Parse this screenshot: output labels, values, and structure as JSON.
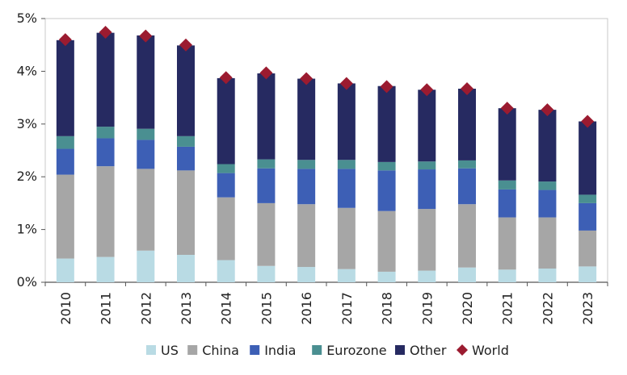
{
  "chart_data": {
    "type": "bar",
    "stacked": true,
    "categories": [
      "2010",
      "2011",
      "2012",
      "2013",
      "2014",
      "2015",
      "2016",
      "2017",
      "2018",
      "2019",
      "2020",
      "2021",
      "2022",
      "2023"
    ],
    "series": [
      {
        "name": "US",
        "color": "#b9dbe4",
        "values": [
          0.45,
          0.48,
          0.6,
          0.52,
          0.42,
          0.31,
          0.29,
          0.25,
          0.2,
          0.22,
          0.28,
          0.24,
          0.26,
          0.3
        ]
      },
      {
        "name": "China",
        "color": "#a6a6a6",
        "values": [
          1.59,
          1.72,
          1.55,
          1.6,
          1.19,
          1.19,
          1.19,
          1.16,
          1.15,
          1.17,
          1.2,
          0.99,
          0.97,
          0.68
        ]
      },
      {
        "name": "India",
        "color": "#3d5fb5",
        "values": [
          0.49,
          0.53,
          0.55,
          0.45,
          0.46,
          0.66,
          0.67,
          0.74,
          0.77,
          0.75,
          0.68,
          0.53,
          0.52,
          0.52
        ]
      },
      {
        "name": "Eurozone",
        "color": "#4a8f91",
        "values": [
          0.24,
          0.22,
          0.21,
          0.2,
          0.17,
          0.17,
          0.17,
          0.17,
          0.16,
          0.15,
          0.15,
          0.17,
          0.16,
          0.16
        ]
      },
      {
        "name": "Other",
        "color": "#262a61",
        "values": [
          1.82,
          1.78,
          1.77,
          1.72,
          1.63,
          1.63,
          1.54,
          1.45,
          1.44,
          1.36,
          1.36,
          1.37,
          1.36,
          1.39
        ]
      }
    ],
    "overlay": {
      "name": "World",
      "type": "scatter",
      "marker": "diamond",
      "color": "#9b1b30",
      "values": [
        4.6,
        4.74,
        4.67,
        4.5,
        3.88,
        3.97,
        3.86,
        3.77,
        3.71,
        3.65,
        3.67,
        3.3,
        3.27,
        3.05
      ]
    },
    "y_ticks": [
      "0%",
      "1%",
      "2%",
      "3%",
      "4%",
      "5%"
    ],
    "ylim": [
      0,
      5
    ],
    "grid": false,
    "legend": "bottom"
  }
}
